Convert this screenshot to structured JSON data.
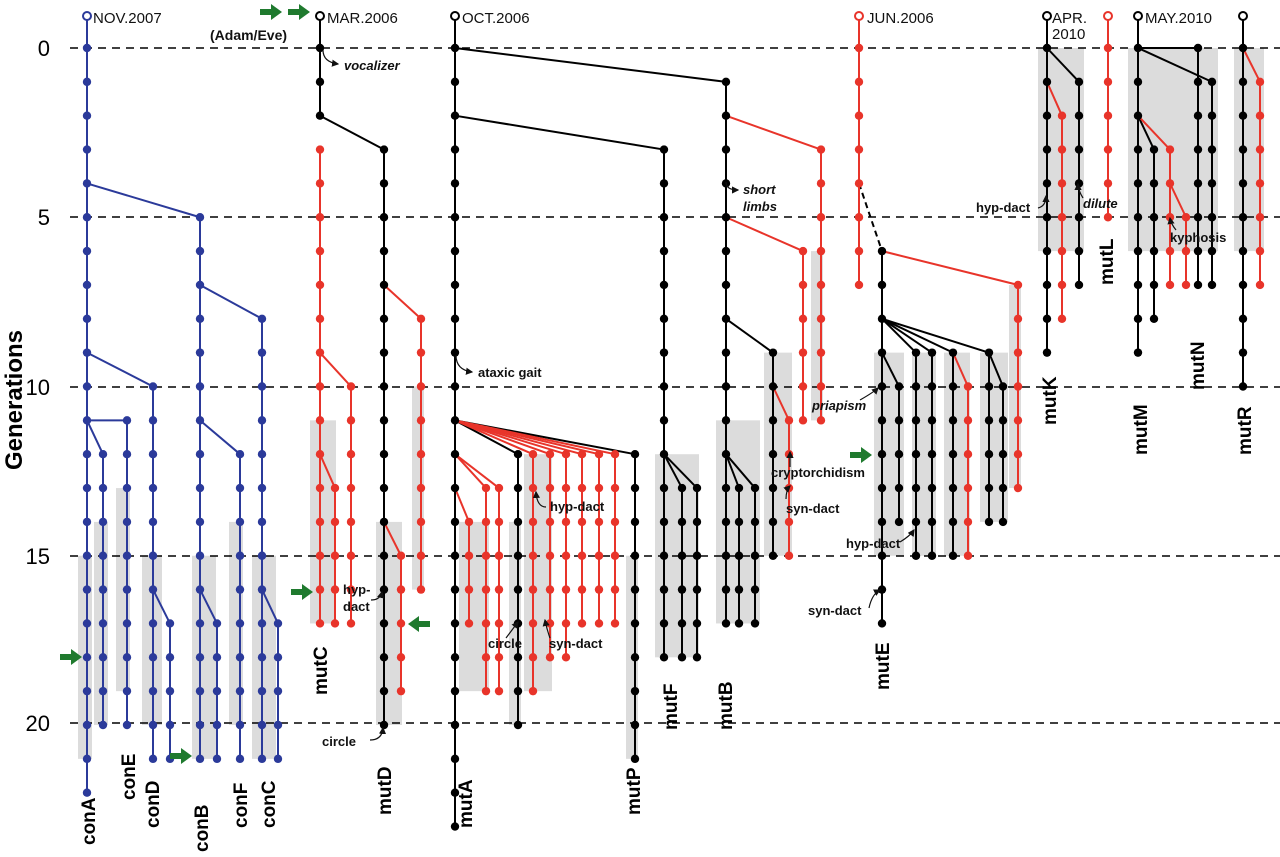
{
  "axis": {
    "title": "Generations",
    "ticks": [
      "0",
      "5",
      "10",
      "15",
      "20"
    ]
  },
  "colors": {
    "control": "#2b3a9a",
    "mutant_black": "#000000",
    "mutant_red": "#e8342a",
    "breeding_shade": "#dcdcdc",
    "arrow": "#1f7a2e"
  },
  "start_dates": [
    "NOV.2007",
    "MAR.2006",
    "OCT.2006",
    "JUN.2006",
    "APR.\n2010",
    "MAY.2010"
  ],
  "founder_label": "(Adam/Eve)",
  "lines": [
    "conA",
    "conE",
    "conD",
    "conB",
    "conF",
    "conC",
    "mutC",
    "mutD",
    "mutA",
    "mutP",
    "mutF",
    "mutB",
    "mutE",
    "mutK",
    "mutL",
    "mutM",
    "mutN",
    "mutR"
  ],
  "annotations": {
    "vocalizer": "vocalizer",
    "ataxic_gait": "ataxic gait",
    "short_limbs_1": "short",
    "short_limbs_2": "limbs",
    "hyp_dact_c1": "hyp-",
    "hyp_dact_c2": "dact",
    "circle_d": "circle",
    "hyp_dact_a": "hyp-dact",
    "circle_a": "circle",
    "syn_dact_a": "syn-dact",
    "cryptorchidism": "cryptorchidism",
    "syn_dact_b": "syn-dact",
    "priapism": "priapism",
    "hyp_dact_e": "hyp-dact",
    "syn_dact_e": "syn-dact",
    "hyp_dact_k": "hyp-dact",
    "dilute": "dilute",
    "kyphosis": "kyphosis"
  }
}
